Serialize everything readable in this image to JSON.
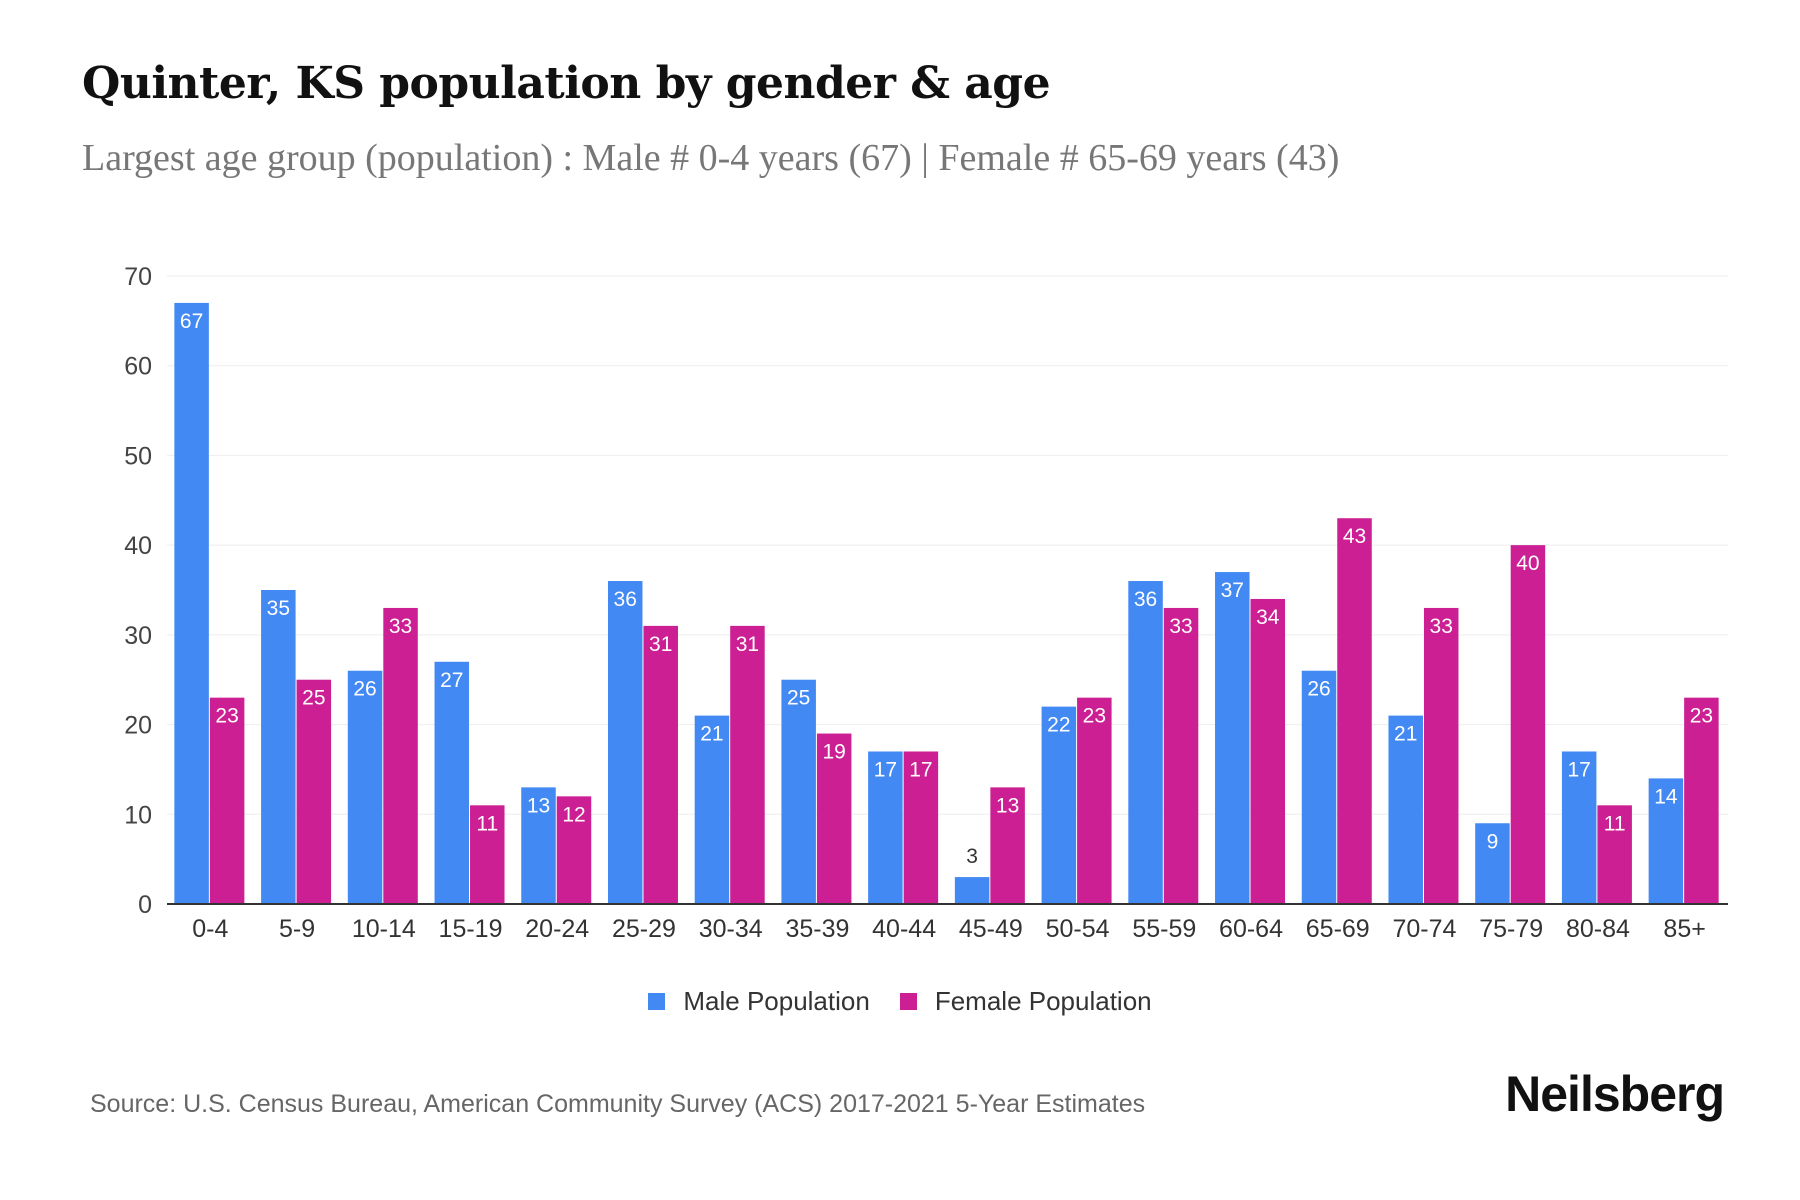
{
  "title": "Quinter, KS population by gender & age",
  "subtitle": "Largest age group (population) : Male # 0-4 years (67) | Female # 65-69 years (43)",
  "source": "Source: U.S. Census Bureau, American Community Survey (ACS) 2017-2021 5-Year Estimates",
  "logo": "Neilsberg",
  "chart_data": {
    "type": "bar",
    "categories": [
      "0-4",
      "5-9",
      "10-14",
      "15-19",
      "20-24",
      "25-29",
      "30-34",
      "35-39",
      "40-44",
      "45-49",
      "50-54",
      "55-59",
      "60-64",
      "65-69",
      "70-74",
      "75-79",
      "80-84",
      "85+"
    ],
    "series": [
      {
        "name": "Male Population",
        "color": "#4289f4",
        "values": [
          67,
          35,
          26,
          27,
          13,
          36,
          21,
          25,
          17,
          3,
          22,
          36,
          37,
          26,
          21,
          9,
          17,
          14
        ]
      },
      {
        "name": "Female Population",
        "color": "#cc1f93",
        "values": [
          23,
          25,
          33,
          11,
          12,
          31,
          31,
          19,
          17,
          13,
          23,
          33,
          34,
          43,
          33,
          40,
          11,
          23
        ]
      }
    ],
    "ylim": [
      0,
      70
    ],
    "yticks": [
      0,
      10,
      20,
      30,
      40,
      50,
      60,
      70
    ],
    "grid": true,
    "legend": "bottom-center",
    "data_labels": true
  }
}
